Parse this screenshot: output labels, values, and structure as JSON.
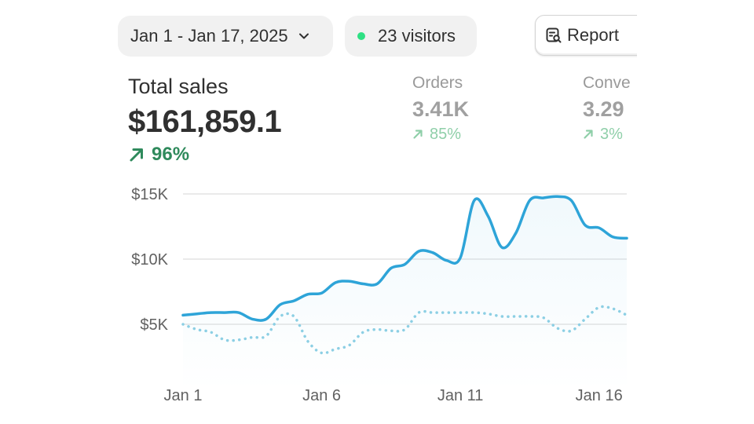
{
  "toolbar": {
    "date_range": "Jan 1 - Jan 17, 2025",
    "visitors": "23 visitors",
    "report_label": "Report"
  },
  "metrics": {
    "total_sales": {
      "label": "Total sales",
      "value": "$161,859.1",
      "change": "96%"
    },
    "orders": {
      "label": "Orders",
      "value": "3.41K",
      "change": "85%"
    },
    "conversion": {
      "label": "Conve",
      "value": "3.29",
      "change": "3%"
    }
  },
  "colors": {
    "current_line": "#2ea4d8",
    "comparison_line": "#8ccfe4",
    "positive": "#2f8a5c",
    "positive_muted": "#8fcfa9",
    "live_dot": "#2ee083"
  },
  "chart_data": {
    "type": "line",
    "title": "",
    "xlabel": "",
    "ylabel": "",
    "x": [
      1,
      1.5,
      2,
      2.5,
      3,
      3.5,
      4,
      4.5,
      5,
      5.5,
      6,
      6.5,
      7,
      7.5,
      8,
      8.5,
      9,
      9.5,
      10,
      10.5,
      11,
      11.5,
      12,
      12.5,
      13,
      13.5,
      14,
      14.5,
      15,
      15.5,
      16,
      16.5,
      17
    ],
    "x_ticks": [
      {
        "value": 1,
        "label": "Jan 1"
      },
      {
        "value": 6,
        "label": "Jan 6"
      },
      {
        "value": 11,
        "label": "Jan 11"
      },
      {
        "value": 16,
        "label": "Jan 16"
      }
    ],
    "y_ticks": [
      {
        "value": 5000,
        "label": "$5K"
      },
      {
        "value": 10000,
        "label": "$10K"
      },
      {
        "value": 15000,
        "label": "$15K"
      }
    ],
    "xlim": [
      1,
      17
    ],
    "ylim": [
      3000,
      15000
    ],
    "grid": true,
    "series": [
      {
        "style": "solid",
        "values": [
          5700,
          5800,
          5900,
          5900,
          5900,
          5400,
          5400,
          6500,
          6800,
          7300,
          7400,
          8200,
          8300,
          8100,
          8100,
          9300,
          9600,
          10600,
          10500,
          9900,
          10100,
          14500,
          13300,
          10900,
          12000,
          14500,
          14700,
          14800,
          14500,
          12600,
          12400,
          11700,
          11600
        ]
      },
      {
        "style": "dotted",
        "values": [
          5000,
          4600,
          4400,
          3800,
          3800,
          4000,
          4100,
          5600,
          5600,
          3700,
          2800,
          3100,
          3400,
          4400,
          4600,
          4500,
          4600,
          5900,
          5900,
          5900,
          5900,
          5900,
          5800,
          5600,
          5600,
          5600,
          5500,
          4700,
          4500,
          5400,
          6300,
          6200,
          5700
        ]
      }
    ]
  }
}
